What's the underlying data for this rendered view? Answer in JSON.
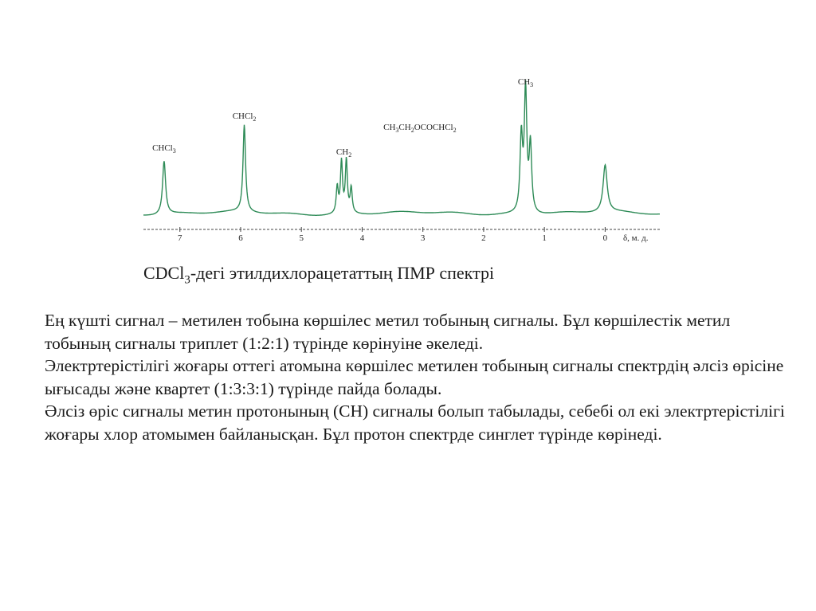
{
  "chart_data": {
    "type": "line",
    "xlabel": "δ, м. д.",
    "x_ticks": [
      7,
      6,
      5,
      4,
      3,
      2,
      1,
      0
    ],
    "xlim": [
      7.6,
      -0.9
    ],
    "reversed_x": true,
    "line_color": "#2e8b57",
    "peaks": [
      {
        "center": 7.26,
        "height": 0.43,
        "width": 0.03
      },
      {
        "center": 5.94,
        "height": 0.7,
        "width": 0.025
      },
      {
        "center": 4.41,
        "height": 0.21,
        "width": 0.02
      },
      {
        "center": 4.34,
        "height": 0.41,
        "width": 0.02
      },
      {
        "center": 4.26,
        "height": 0.42,
        "width": 0.02
      },
      {
        "center": 4.18,
        "height": 0.2,
        "width": 0.02
      },
      {
        "center": 1.38,
        "height": 0.6,
        "width": 0.025
      },
      {
        "center": 1.31,
        "height": 0.97,
        "width": 0.025
      },
      {
        "center": 1.23,
        "height": 0.54,
        "width": 0.025
      },
      {
        "center": 0.0,
        "height": 0.38,
        "width": 0.04
      }
    ],
    "annotations": [
      {
        "id": "chcl3",
        "parts": [
          [
            "CHCl",
            ""
          ],
          [
            "3",
            "sub"
          ]
        ],
        "x": 7.26
      },
      {
        "id": "chcl2",
        "parts": [
          [
            "CHCl",
            ""
          ],
          [
            "2",
            "sub"
          ]
        ],
        "x": 5.94
      },
      {
        "id": "ch2",
        "parts": [
          [
            "CH",
            ""
          ],
          [
            "2",
            "sub"
          ]
        ],
        "x": 4.3
      },
      {
        "id": "molecule",
        "parts": [
          [
            "CH",
            ""
          ],
          [
            "3",
            "sub"
          ],
          [
            "CH",
            ""
          ],
          [
            "2",
            "sub"
          ],
          [
            "OCOCHCl",
            ""
          ],
          [
            "2",
            "sub"
          ]
        ],
        "x": 3.05
      },
      {
        "id": "ch3",
        "parts": [
          [
            "CH",
            ""
          ],
          [
            "3",
            "sub"
          ]
        ],
        "x": 1.31
      }
    ]
  },
  "caption": {
    "prefix": "CDCl",
    "sub": "3",
    "rest": "-дегі этилдихлорацетаттың ПМР спектрі"
  },
  "paragraphs": [
    "Ең күшті сигнал – метилен тобына көршілес метил тобының сигналы. Бұл көршілестік метил тобының сигналы триплет  (1:2:1) түрінде көрінуіне әкеледі.",
    "Электртерістілігі жоғары  оттегі атомына көршілес метилен тобының сигналы спектрдің әлсіз өрісіне ығысады және квартет (1:3:3:1) түрінде пайда болады.",
    "Әлсіз өріс сигналы метин протонының  (СН) сигналы болып табылады, себебі  ол екі электртерістілігі жоғары  хлор атомымен байланысқан. Бұл протон спектрде синглет түрінде көрінеді."
  ]
}
